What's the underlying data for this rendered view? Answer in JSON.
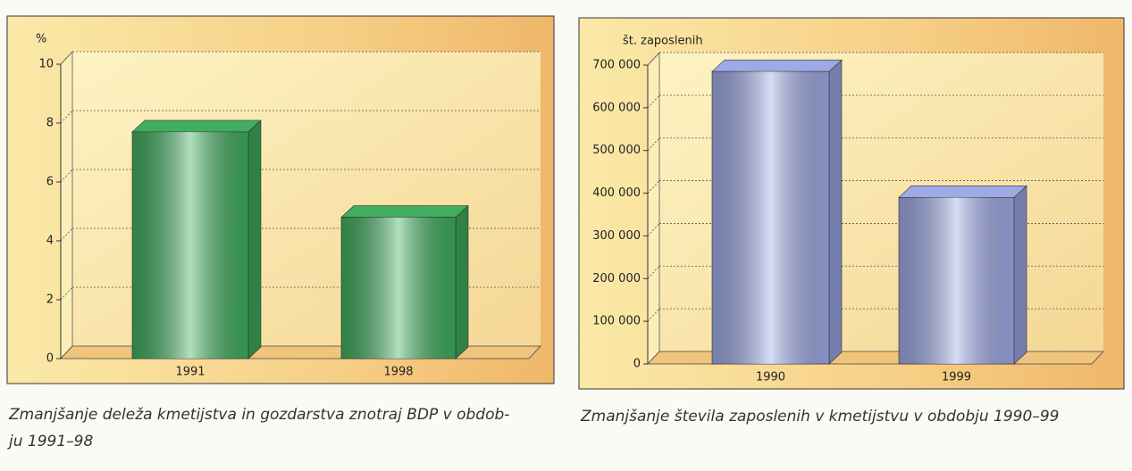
{
  "chart_data": [
    {
      "type": "bar",
      "ylabel": "%",
      "categories": [
        "1991",
        "1998"
      ],
      "values": [
        7.7,
        4.8
      ],
      "color": "#3fae5e",
      "ylim": [
        0,
        10
      ],
      "yticks": [
        0,
        2,
        4,
        6,
        8,
        10
      ],
      "grid": true,
      "caption": [
        "Zmanjšanje deleža kmetijstva in gozdarstva znotraj BDP v obdob-",
        "ju 1991–98"
      ]
    },
    {
      "type": "bar",
      "ylabel": "št. zaposlenih",
      "categories": [
        "1990",
        "1999"
      ],
      "values": [
        685000,
        390000
      ],
      "color": "#9eaae6",
      "ylim": [
        0,
        700000
      ],
      "yticks": [
        0,
        {
          "value": 100000,
          "label": "100 000"
        },
        {
          "value": 200000,
          "label": "200 000"
        },
        {
          "value": 300000,
          "label": "300 000"
        },
        {
          "value": 400000,
          "label": "400 000"
        },
        {
          "value": 500000,
          "label": "500 000"
        },
        {
          "value": 600000,
          "label": "600 000"
        },
        {
          "value": 700000,
          "label": "700 000"
        }
      ],
      "grid": true,
      "caption": [
        "Zmanjšanje števila zaposlenih v kmetijstvu v obdobju 1990–99"
      ]
    }
  ]
}
